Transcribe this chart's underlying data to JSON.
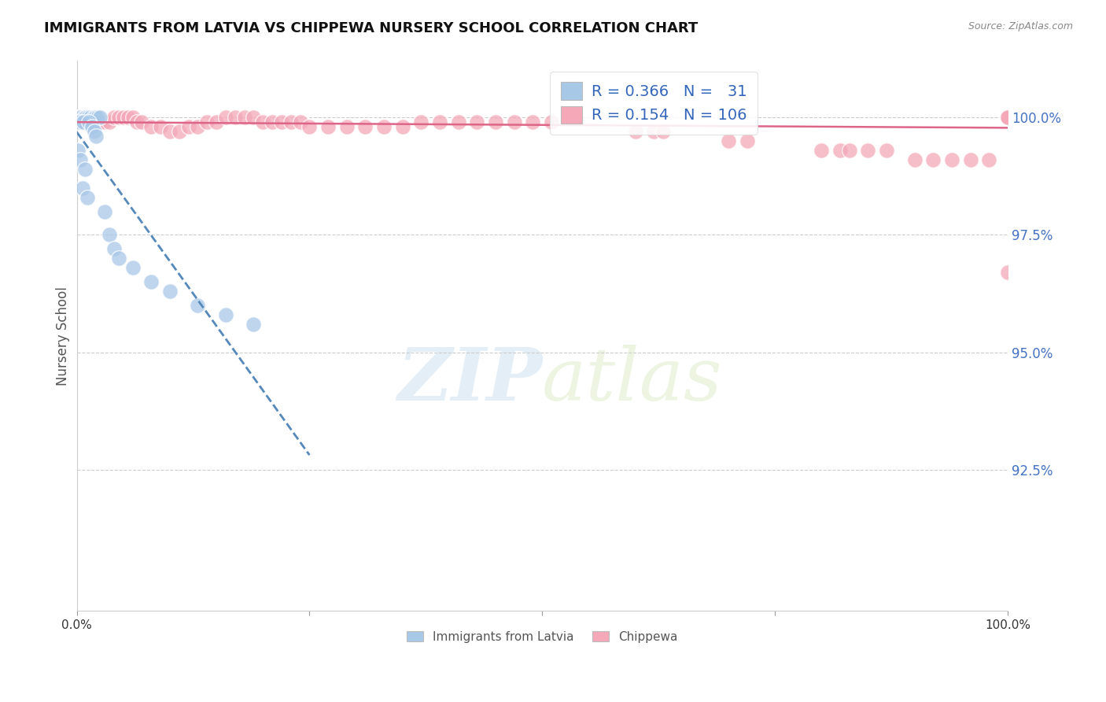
{
  "title": "IMMIGRANTS FROM LATVIA VS CHIPPEWA NURSERY SCHOOL CORRELATION CHART",
  "source": "Source: ZipAtlas.com",
  "ylabel": "Nursery School",
  "xlim": [
    0.0,
    1.0
  ],
  "ylim": [
    0.895,
    1.012
  ],
  "yticks": [
    0.925,
    0.95,
    0.975,
    1.0
  ],
  "ytick_labels": [
    "92.5%",
    "95.0%",
    "97.5%",
    "100.0%"
  ],
  "blue_R": 0.366,
  "blue_N": 31,
  "pink_R": 0.154,
  "pink_N": 106,
  "blue_color": "#a8c8e8",
  "pink_color": "#f4a8b8",
  "blue_line_color": "#5588bb",
  "pink_line_color": "#dd6688",
  "legend_label_blue": "Immigrants from Latvia",
  "legend_label_pink": "Chippewa",
  "watermark_zip": "ZIP",
  "watermark_atlas": "atlas",
  "background_color": "#ffffff",
  "blue_x": [
    0.002,
    0.005,
    0.008,
    0.01,
    0.012,
    0.015,
    0.018,
    0.02,
    0.022,
    0.025,
    0.003,
    0.007,
    0.013,
    0.016,
    0.019,
    0.021,
    0.03,
    0.035,
    0.04,
    0.045,
    0.06,
    0.08,
    0.1,
    0.13,
    0.16,
    0.19,
    0.001,
    0.004,
    0.009,
    0.006,
    0.011
  ],
  "blue_y": [
    1.0,
    1.0,
    1.0,
    1.0,
    1.0,
    1.0,
    1.0,
    1.0,
    1.0,
    1.0,
    0.999,
    0.999,
    0.999,
    0.998,
    0.997,
    0.996,
    0.98,
    0.975,
    0.972,
    0.97,
    0.968,
    0.965,
    0.963,
    0.96,
    0.958,
    0.956,
    0.993,
    0.991,
    0.989,
    0.985,
    0.983
  ],
  "pink_x": [
    0.001,
    0.003,
    0.005,
    0.007,
    0.009,
    0.012,
    0.015,
    0.018,
    0.02,
    0.025,
    0.03,
    0.035,
    0.04,
    0.045,
    0.05,
    0.055,
    0.06,
    0.065,
    0.07,
    0.08,
    0.09,
    0.1,
    0.11,
    0.12,
    0.13,
    0.14,
    0.15,
    0.16,
    0.17,
    0.18,
    0.19,
    0.2,
    0.21,
    0.22,
    0.23,
    0.24,
    0.25,
    0.27,
    0.29,
    0.31,
    0.33,
    0.35,
    0.37,
    0.39,
    0.41,
    0.43,
    0.45,
    0.47,
    0.49,
    0.51,
    0.6,
    0.62,
    0.63,
    0.7,
    0.72,
    0.8,
    0.82,
    0.83,
    0.85,
    0.87,
    0.9,
    0.92,
    0.94,
    0.96,
    0.98,
    1.0,
    1.0,
    1.0,
    1.0,
    1.0,
    1.0,
    1.0,
    1.0,
    1.0,
    1.0,
    1.0,
    1.0,
    1.0,
    1.0,
    1.0,
    1.0,
    1.0,
    1.0,
    1.0,
    1.0,
    1.0,
    1.0,
    1.0,
    1.0,
    1.0,
    1.0,
    1.0,
    1.0,
    1.0,
    1.0,
    1.0,
    1.0,
    1.0,
    1.0,
    1.0,
    1.0,
    1.0,
    1.0,
    1.0,
    1.0,
    1.0
  ],
  "pink_y": [
    1.0,
    1.0,
    0.999,
    0.999,
    0.999,
    1.0,
    1.0,
    1.0,
    0.999,
    0.999,
    0.999,
    0.999,
    1.0,
    1.0,
    1.0,
    1.0,
    1.0,
    0.999,
    0.999,
    0.998,
    0.998,
    0.997,
    0.997,
    0.998,
    0.998,
    0.999,
    0.999,
    1.0,
    1.0,
    1.0,
    1.0,
    0.999,
    0.999,
    0.999,
    0.999,
    0.999,
    0.998,
    0.998,
    0.998,
    0.998,
    0.998,
    0.998,
    0.999,
    0.999,
    0.999,
    0.999,
    0.999,
    0.999,
    0.999,
    0.999,
    0.997,
    0.997,
    0.997,
    0.995,
    0.995,
    0.993,
    0.993,
    0.993,
    0.993,
    0.993,
    0.991,
    0.991,
    0.991,
    0.991,
    0.991,
    1.0,
    1.0,
    1.0,
    1.0,
    1.0,
    1.0,
    1.0,
    1.0,
    1.0,
    1.0,
    1.0,
    1.0,
    1.0,
    1.0,
    1.0,
    1.0,
    1.0,
    1.0,
    1.0,
    1.0,
    1.0,
    1.0,
    1.0,
    1.0,
    1.0,
    1.0,
    1.0,
    1.0,
    1.0,
    1.0,
    1.0,
    1.0,
    1.0,
    1.0,
    1.0,
    1.0,
    1.0,
    1.0,
    1.0,
    1.0,
    0.967
  ]
}
